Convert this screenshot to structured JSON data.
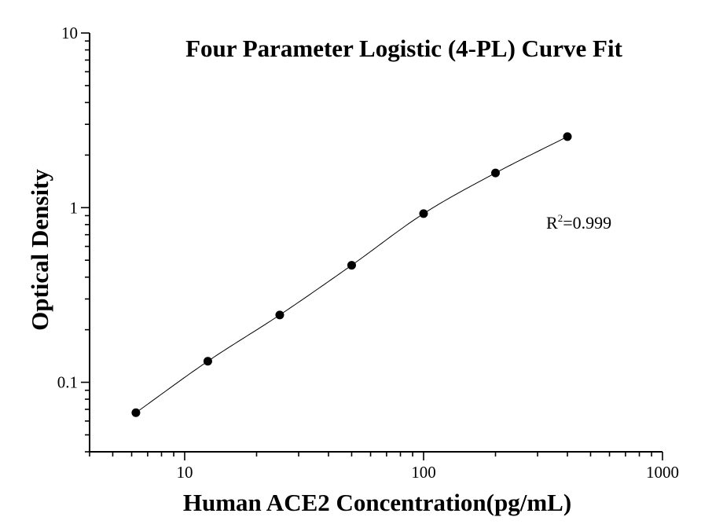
{
  "chart_data": {
    "type": "scatter",
    "title": "Four Parameter Logistic (4-PL) Curve Fit",
    "xlabel": "Human ACE2 Concentration(pg/mL)",
    "ylabel": "Optical Density",
    "x_scale": "log",
    "y_scale": "log",
    "xlim": [
      4,
      1000
    ],
    "ylim": [
      0.04,
      10
    ],
    "x_ticks": [
      "10",
      "100",
      "1000"
    ],
    "y_ticks": [
      "10",
      "1",
      "0.1"
    ],
    "grid": false,
    "series": [
      {
        "x": [
          6.25,
          12.5,
          25,
          50,
          100,
          200,
          400
        ],
        "y": [
          0.067,
          0.132,
          0.243,
          0.468,
          0.924,
          1.58,
          2.55
        ],
        "fit": "4-PL",
        "fit_r2": 0.999
      }
    ],
    "annotation": {
      "r_symbol": "R",
      "r_sup": "2",
      "r_value": "=0.999"
    }
  }
}
